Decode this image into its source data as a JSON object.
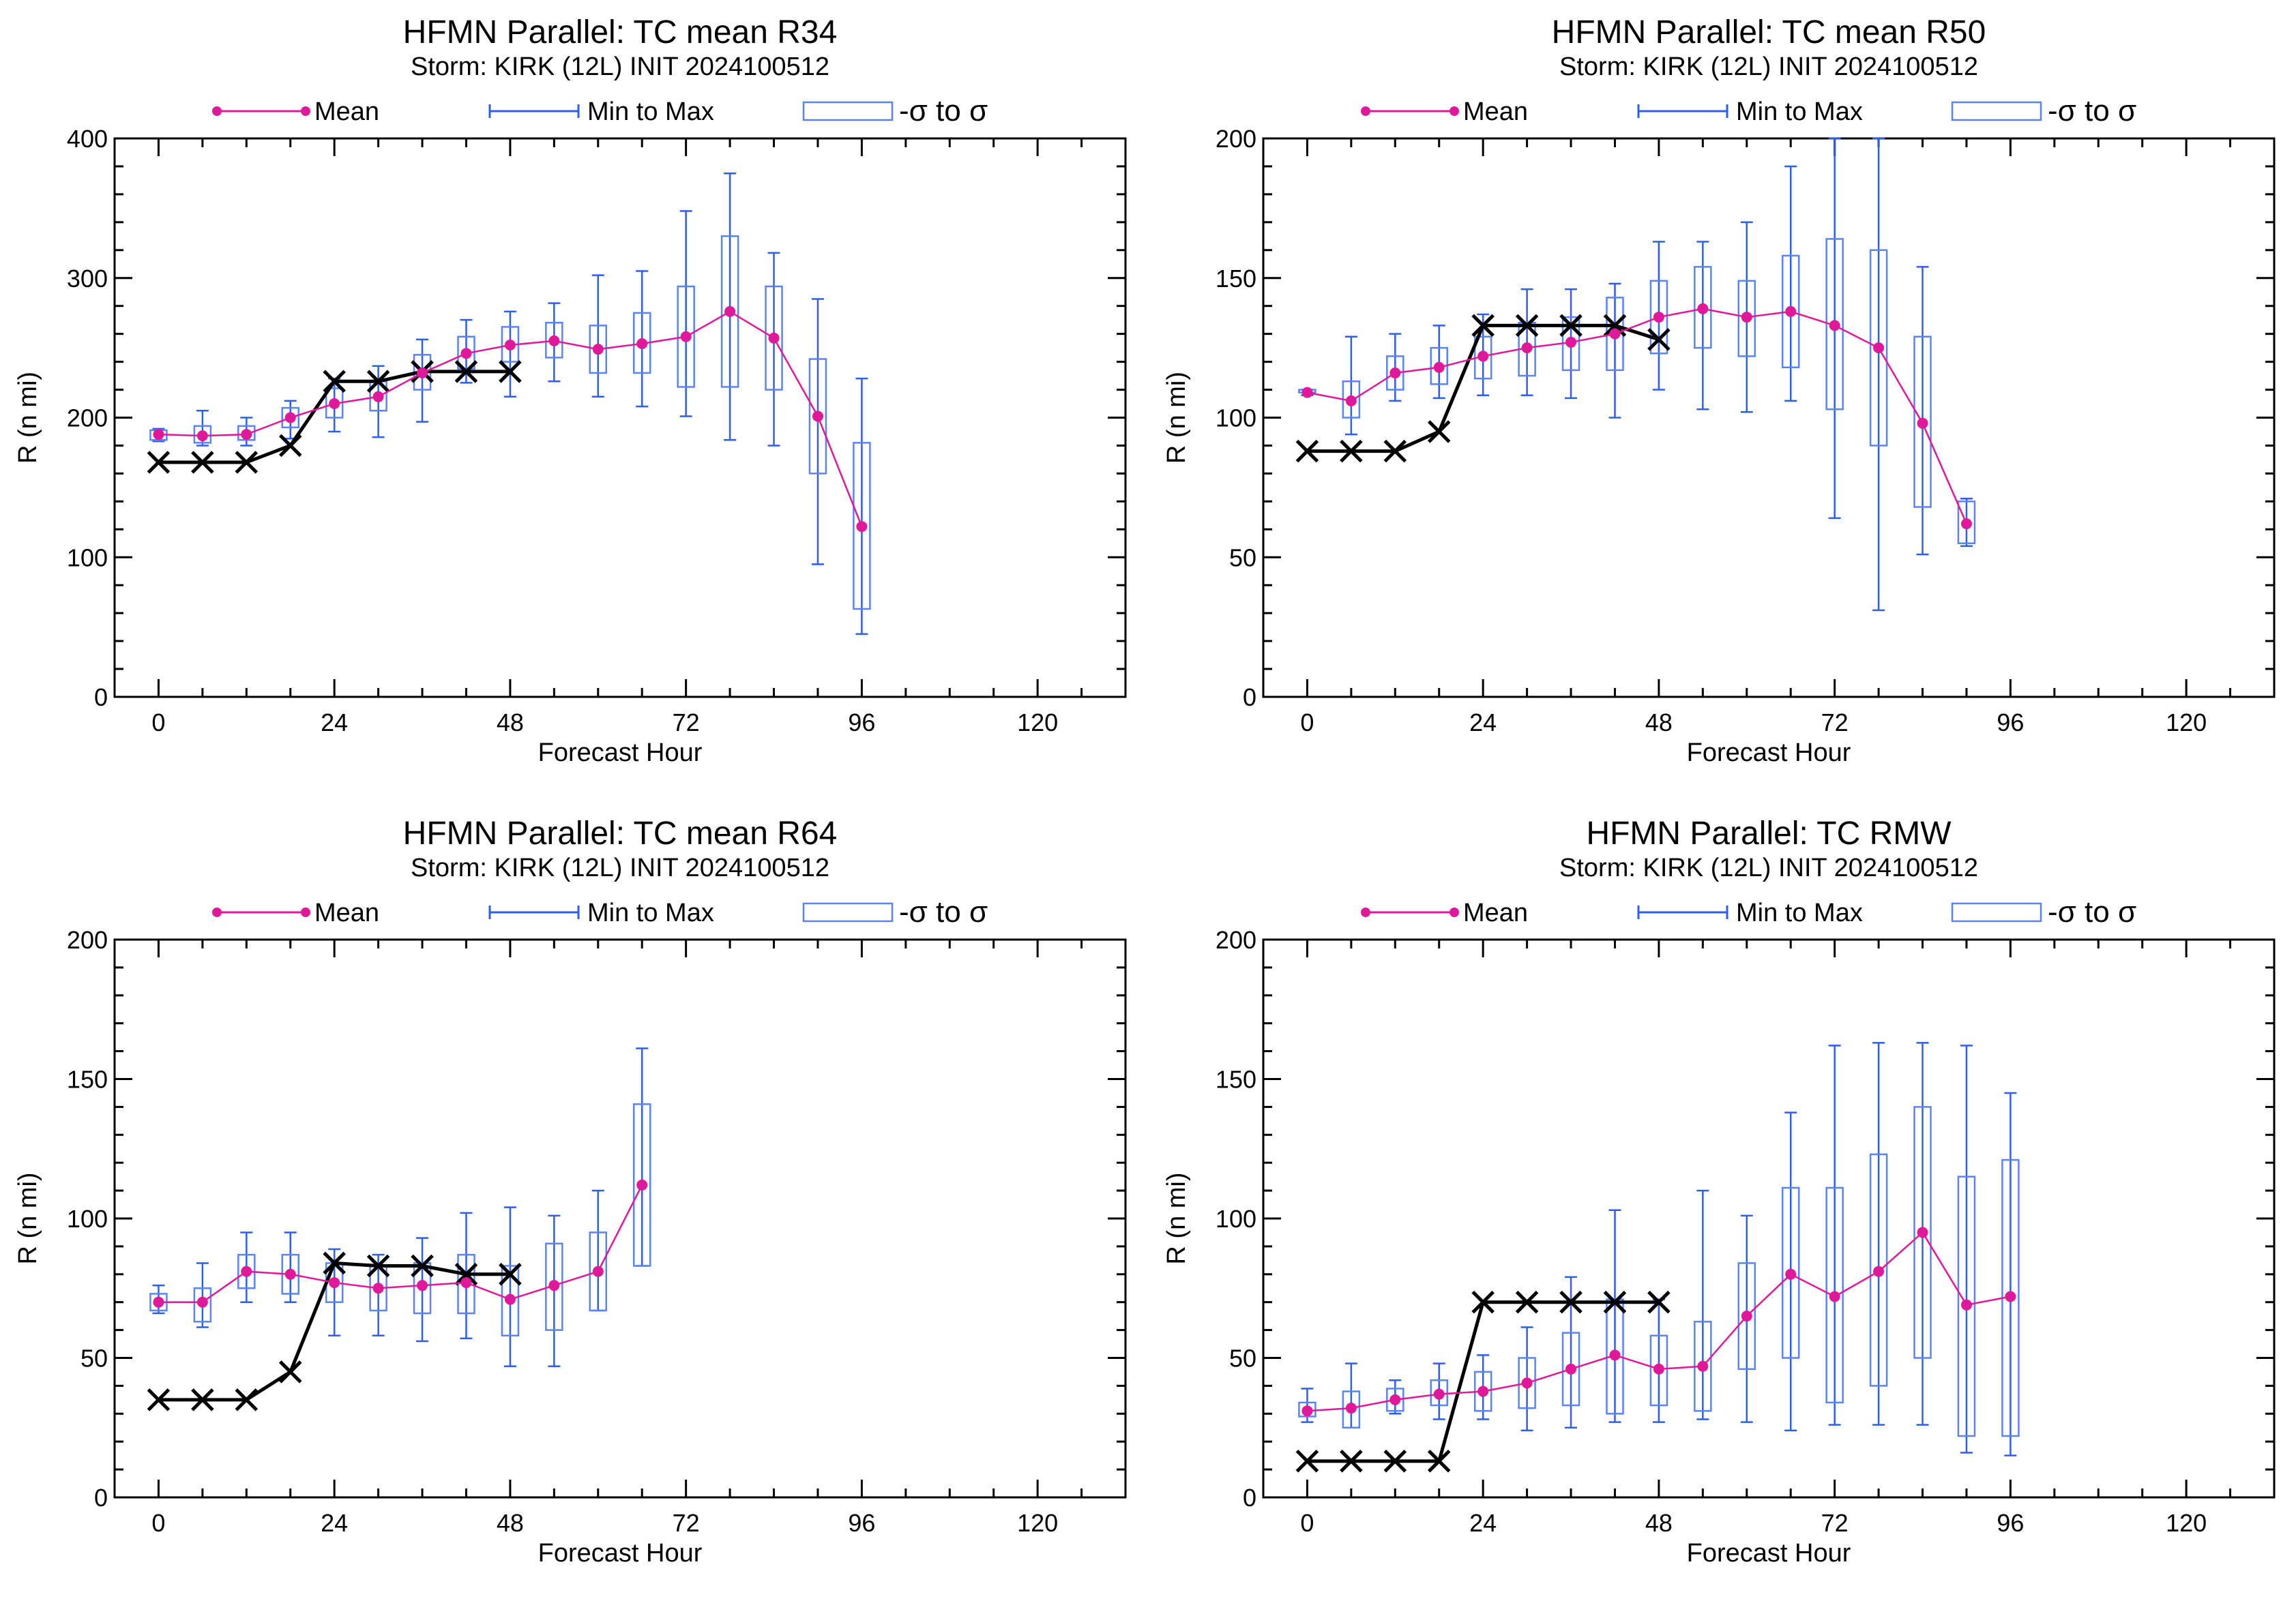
{
  "colors": {
    "mean": "#e0189a",
    "minmax": "#2f5ee8",
    "sigma": "#5b84f2",
    "best_track": "#000000",
    "axes": "#000000"
  },
  "legend": {
    "mean": "Mean",
    "minmax": "Min to Max",
    "sigma": "-σ to σ"
  },
  "chart_data": [
    {
      "type": "line",
      "title": "HFMN Parallel: TC mean R34",
      "subtitle": "Storm: KIRK (12L) INIT 2024100512",
      "xlabel": "Forecast Hour",
      "ylabel": "R (n mi)",
      "xlim": [
        -6,
        132
      ],
      "ylim": [
        0,
        400
      ],
      "xticks": [
        0,
        24,
        48,
        72,
        96,
        120
      ],
      "yticks": [
        0,
        100,
        200,
        300,
        400
      ],
      "legend_position": "top",
      "series": [
        {
          "name": "Mean",
          "x": [
            0,
            6,
            12,
            18,
            24,
            30,
            36,
            42,
            48,
            54,
            60,
            66,
            72,
            78,
            84,
            90,
            96
          ],
          "y": [
            188,
            187,
            188,
            200,
            210,
            215,
            232,
            246,
            252,
            255,
            249,
            253,
            258,
            276,
            257,
            201,
            122
          ]
        },
        {
          "name": "Min to Max",
          "x": [
            0,
            6,
            12,
            18,
            24,
            30,
            36,
            42,
            48,
            54,
            60,
            66,
            72,
            78,
            84,
            90,
            96
          ],
          "low": [
            183,
            180,
            180,
            185,
            190,
            186,
            197,
            225,
            215,
            226,
            215,
            208,
            201,
            184,
            180,
            95,
            45
          ],
          "high": [
            192,
            205,
            200,
            212,
            228,
            237,
            256,
            270,
            276,
            282,
            302,
            305,
            348,
            375,
            318,
            285,
            228
          ]
        },
        {
          "name": "-σ to σ",
          "x": [
            0,
            6,
            12,
            18,
            24,
            30,
            36,
            42,
            48,
            54,
            60,
            66,
            72,
            78,
            84,
            90,
            96
          ],
          "low": [
            184,
            182,
            184,
            193,
            200,
            205,
            220,
            235,
            240,
            243,
            232,
            232,
            222,
            222,
            220,
            160,
            63
          ],
          "high": [
            191,
            194,
            194,
            207,
            221,
            226,
            245,
            258,
            265,
            268,
            266,
            275,
            294,
            330,
            294,
            242,
            182
          ]
        },
        {
          "name": "",
          "x": [
            0,
            6,
            12,
            18,
            24,
            30,
            36,
            42,
            48
          ],
          "y": [
            168,
            168,
            168,
            180,
            226,
            226,
            233,
            233,
            233
          ]
        }
      ]
    },
    {
      "type": "line",
      "title": "HFMN Parallel: TC mean R50",
      "subtitle": "Storm: KIRK (12L) INIT 2024100512",
      "xlabel": "Forecast Hour",
      "ylabel": "R (n mi)",
      "xlim": [
        -6,
        132
      ],
      "ylim": [
        0,
        200
      ],
      "xticks": [
        0,
        24,
        48,
        72,
        96,
        120
      ],
      "yticks": [
        0,
        50,
        100,
        150,
        200
      ],
      "legend_position": "top",
      "series": [
        {
          "name": "Mean",
          "x": [
            0,
            6,
            12,
            18,
            24,
            30,
            36,
            42,
            48,
            54,
            60,
            66,
            72,
            78,
            84,
            90
          ],
          "y": [
            109,
            106,
            116,
            118,
            122,
            125,
            127,
            130,
            136,
            139,
            136,
            138,
            133,
            125,
            98,
            62
          ]
        },
        {
          "name": "Min to Max",
          "x": [
            0,
            6,
            12,
            18,
            24,
            30,
            36,
            42,
            48,
            54,
            60,
            66,
            72,
            78,
            84,
            90
          ],
          "low": [
            108,
            94,
            106,
            107,
            108,
            108,
            107,
            100,
            110,
            103,
            102,
            106,
            64,
            31,
            51,
            54
          ],
          "high": [
            110,
            129,
            130,
            133,
            137,
            146,
            146,
            148,
            163,
            163,
            170,
            190,
            200,
            200,
            154,
            71
          ]
        },
        {
          "name": "-σ to σ",
          "x": [
            0,
            6,
            12,
            18,
            24,
            30,
            36,
            42,
            48,
            54,
            60,
            66,
            72,
            78,
            84,
            90
          ],
          "low": [
            109,
            100,
            110,
            112,
            114,
            115,
            117,
            117,
            123,
            125,
            122,
            118,
            103,
            90,
            68,
            55
          ],
          "high": [
            110,
            113,
            122,
            125,
            129,
            134,
            136,
            143,
            149,
            154,
            149,
            158,
            164,
            160,
            129,
            70
          ]
        },
        {
          "name": "",
          "x": [
            0,
            6,
            12,
            18,
            24,
            30,
            36,
            42,
            48
          ],
          "y": [
            88,
            88,
            88,
            95,
            133,
            133,
            133,
            133,
            128
          ]
        }
      ]
    },
    {
      "type": "line",
      "title": "HFMN Parallel: TC mean R64",
      "subtitle": "Storm: KIRK (12L) INIT 2024100512",
      "xlabel": "Forecast Hour",
      "ylabel": "R (n mi)",
      "xlim": [
        -6,
        132
      ],
      "ylim": [
        0,
        200
      ],
      "xticks": [
        0,
        24,
        48,
        72,
        96,
        120
      ],
      "yticks": [
        0,
        50,
        100,
        150,
        200
      ],
      "legend_position": "top",
      "series": [
        {
          "name": "Mean",
          "x": [
            0,
            6,
            12,
            18,
            24,
            30,
            36,
            42,
            48,
            54,
            60,
            66
          ],
          "y": [
            70,
            70,
            81,
            80,
            77,
            75,
            76,
            77,
            71,
            76,
            81,
            112
          ]
        },
        {
          "name": "Min to Max",
          "x": [
            0,
            6,
            12,
            18,
            24,
            30,
            36,
            42,
            48,
            54,
            60,
            66
          ],
          "low": [
            66,
            61,
            70,
            70,
            58,
            58,
            56,
            57,
            47,
            47,
            67,
            83
          ],
          "high": [
            76,
            84,
            95,
            95,
            89,
            87,
            93,
            102,
            104,
            101,
            110,
            161
          ]
        },
        {
          "name": "-σ to σ",
          "x": [
            0,
            6,
            12,
            18,
            24,
            30,
            36,
            42,
            48,
            54,
            60,
            66
          ],
          "low": [
            67,
            63,
            75,
            73,
            70,
            67,
            66,
            66,
            58,
            60,
            67,
            83
          ],
          "high": [
            73,
            75,
            87,
            87,
            84,
            83,
            84,
            87,
            83,
            91,
            95,
            141
          ]
        },
        {
          "name": "",
          "x": [
            0,
            6,
            12,
            18,
            24,
            30,
            36,
            42,
            48
          ],
          "y": [
            35,
            35,
            35,
            45,
            84,
            83,
            83,
            80,
            80
          ]
        }
      ]
    },
    {
      "type": "line",
      "title": "HFMN Parallel: TC RMW",
      "subtitle": "Storm: KIRK (12L) INIT 2024100512",
      "xlabel": "Forecast Hour",
      "ylabel": "R (n mi)",
      "xlim": [
        -6,
        132
      ],
      "ylim": [
        0,
        200
      ],
      "xticks": [
        0,
        24,
        48,
        72,
        96,
        120
      ],
      "yticks": [
        0,
        50,
        100,
        150,
        200
      ],
      "legend_position": "top",
      "series": [
        {
          "name": "Mean",
          "x": [
            0,
            6,
            12,
            18,
            24,
            30,
            36,
            42,
            48,
            54,
            60,
            66,
            72,
            78,
            84,
            90,
            96
          ],
          "y": [
            31,
            32,
            35,
            37,
            38,
            41,
            46,
            51,
            46,
            47,
            65,
            80,
            72,
            81,
            95,
            69,
            72
          ]
        },
        {
          "name": "Min to Max",
          "x": [
            0,
            6,
            12,
            18,
            24,
            30,
            36,
            42,
            48,
            54,
            60,
            66,
            72,
            78,
            84,
            90,
            96
          ],
          "low": [
            27,
            25,
            30,
            28,
            28,
            24,
            25,
            27,
            27,
            28,
            27,
            24,
            26,
            26,
            26,
            16,
            15
          ],
          "high": [
            39,
            48,
            42,
            48,
            51,
            61,
            79,
            103,
            71,
            110,
            101,
            138,
            162,
            163,
            163,
            162,
            145
          ]
        },
        {
          "name": "-σ to σ",
          "x": [
            0,
            6,
            12,
            18,
            24,
            30,
            36,
            42,
            48,
            54,
            60,
            66,
            72,
            78,
            84,
            90,
            96
          ],
          "low": [
            29,
            25,
            31,
            33,
            31,
            32,
            33,
            30,
            33,
            31,
            46,
            50,
            34,
            40,
            50,
            22,
            22
          ],
          "high": [
            34,
            38,
            39,
            42,
            45,
            50,
            59,
            71,
            58,
            63,
            84,
            111,
            111,
            123,
            140,
            115,
            121
          ]
        },
        {
          "name": "",
          "x": [
            0,
            6,
            12,
            18,
            24,
            30,
            36,
            42,
            48
          ],
          "y": [
            13,
            13,
            13,
            13,
            70,
            70,
            70,
            70,
            70
          ]
        }
      ]
    }
  ]
}
